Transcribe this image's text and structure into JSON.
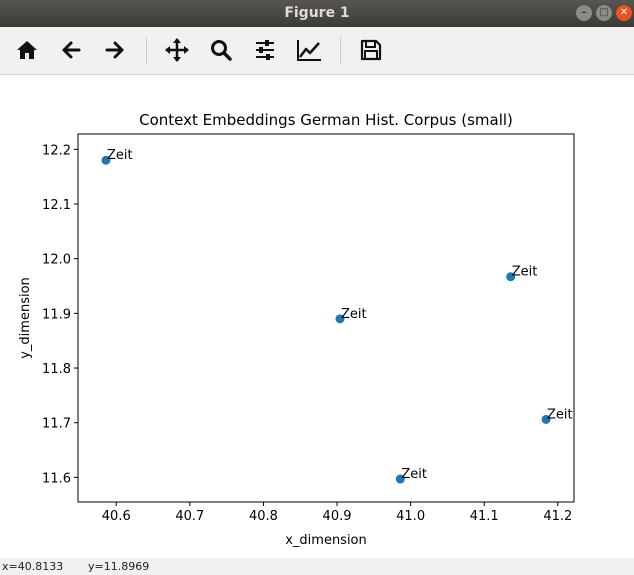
{
  "window": {
    "title": "Figure 1",
    "controls": [
      "minimize",
      "maximize",
      "close"
    ]
  },
  "toolbar": {
    "buttons": [
      {
        "name": "home",
        "icon": "home-icon"
      },
      {
        "name": "back",
        "icon": "arrow-left-icon"
      },
      {
        "name": "forward",
        "icon": "arrow-right-icon"
      },
      {
        "name": "pan",
        "icon": "move-icon"
      },
      {
        "name": "zoom",
        "icon": "search-icon"
      },
      {
        "name": "configure-subplots",
        "icon": "sliders-icon"
      },
      {
        "name": "edit-axes",
        "icon": "line-chart-icon"
      },
      {
        "name": "save",
        "icon": "floppy-disk-icon"
      }
    ]
  },
  "status": {
    "x": "x=40.8133",
    "y": "y=11.8969"
  },
  "chart_data": {
    "type": "scatter",
    "title": "Context Embeddings German Hist. Corpus (small)",
    "xlabel": "x_dimension",
    "ylabel": "y_dimension",
    "xlim": [
      40.548,
      41.222
    ],
    "ylim": [
      11.555,
      12.228
    ],
    "xticks": [
      "40.6",
      "40.7",
      "40.8",
      "40.9",
      "41.0",
      "41.1",
      "41.2"
    ],
    "yticks": [
      "11.6",
      "11.7",
      "11.8",
      "11.9",
      "12.0",
      "12.1",
      "12.2"
    ],
    "points": [
      {
        "x": 40.586,
        "y": 12.18,
        "label": "Zeit"
      },
      {
        "x": 40.904,
        "y": 11.89,
        "label": "Zeit"
      },
      {
        "x": 41.136,
        "y": 11.967,
        "label": "Zeit"
      },
      {
        "x": 41.184,
        "y": 11.706,
        "label": "Zeit"
      },
      {
        "x": 40.986,
        "y": 11.597,
        "label": "Zeit"
      }
    ],
    "marker_color": "#1f77b4",
    "grid": false
  }
}
